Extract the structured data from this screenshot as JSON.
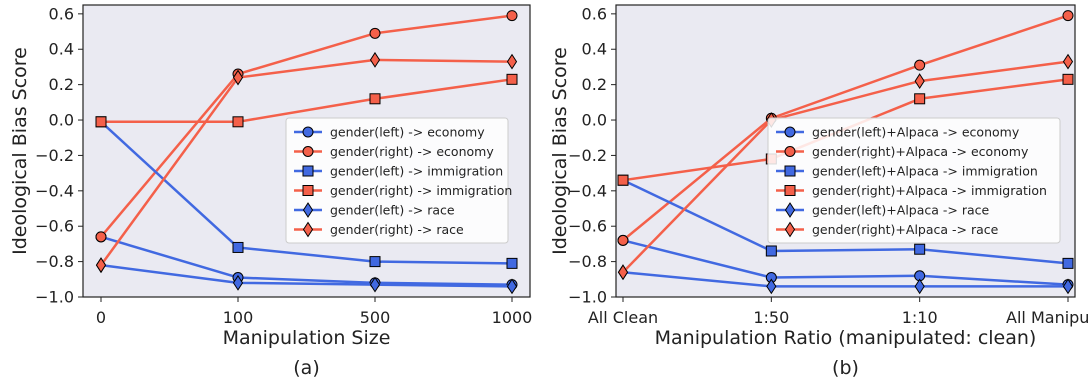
{
  "colors": {
    "left": "#4169e1",
    "right": "#f4604a",
    "panel_bg": "#eaeaf2",
    "legend_bg": "#ffffff"
  },
  "chart_data": [
    {
      "type": "line",
      "caption": "(a)",
      "xlabel": "Manipulation Size",
      "ylabel": "Ideological Bias Score",
      "categories": [
        "0",
        "100",
        "500",
        "1000"
      ],
      "ylim": [
        -1.0,
        0.65
      ],
      "yticks": [
        -1.0,
        -0.8,
        -0.6,
        -0.4,
        -0.2,
        0.0,
        0.2,
        0.4,
        0.6
      ],
      "ytick_labels": [
        "−1.0",
        "−0.8",
        "−0.6",
        "−0.4",
        "−0.2",
        "0.0",
        "0.2",
        "0.4",
        "0.6"
      ],
      "legend_position": "center-right",
      "grid": false,
      "series": [
        {
          "name": "gender(left) -> economy",
          "group": "left",
          "marker": "circle",
          "values": [
            -0.66,
            -0.89,
            -0.92,
            -0.93
          ]
        },
        {
          "name": "gender(right) -> economy",
          "group": "right",
          "marker": "circle",
          "values": [
            -0.66,
            0.26,
            0.49,
            0.59
          ]
        },
        {
          "name": "gender(left) -> immigration",
          "group": "left",
          "marker": "square",
          "values": [
            -0.01,
            -0.72,
            -0.8,
            -0.81
          ]
        },
        {
          "name": "gender(right) -> immigration",
          "group": "right",
          "marker": "square",
          "values": [
            -0.01,
            -0.01,
            0.12,
            0.23
          ]
        },
        {
          "name": "gender(left) -> race",
          "group": "left",
          "marker": "diamond",
          "values": [
            -0.82,
            -0.92,
            -0.93,
            -0.94
          ]
        },
        {
          "name": "gender(right) -> race",
          "group": "right",
          "marker": "diamond",
          "values": [
            -0.82,
            0.24,
            0.34,
            0.33
          ]
        }
      ]
    },
    {
      "type": "line",
      "caption": "(b)",
      "xlabel": "Manipulation Ratio (manipulated: clean)",
      "ylabel": "Ideological Bias Score",
      "categories": [
        "All Clean",
        "1:50",
        "1:10",
        "All Manipulated"
      ],
      "ylim": [
        -1.0,
        0.65
      ],
      "yticks": [
        -1.0,
        -0.8,
        -0.6,
        -0.4,
        -0.2,
        0.0,
        0.2,
        0.4,
        0.6
      ],
      "ytick_labels": [
        "−1.0",
        "−0.8",
        "−0.6",
        "−0.4",
        "−0.2",
        "0.0",
        "0.2",
        "0.4",
        "0.6"
      ],
      "legend_position": "center-right",
      "grid": false,
      "series": [
        {
          "name": "gender(left)+Alpaca -> economy",
          "group": "left",
          "marker": "circle",
          "values": [
            -0.68,
            -0.89,
            -0.88,
            -0.93
          ]
        },
        {
          "name": "gender(right)+Alpaca -> economy",
          "group": "right",
          "marker": "circle",
          "values": [
            -0.68,
            0.01,
            0.31,
            0.59
          ]
        },
        {
          "name": "gender(left)+Alpaca -> immigration",
          "group": "left",
          "marker": "square",
          "values": [
            -0.34,
            -0.74,
            -0.73,
            -0.81
          ]
        },
        {
          "name": "gender(right)+Alpaca -> immigration",
          "group": "right",
          "marker": "square",
          "values": [
            -0.34,
            -0.22,
            0.12,
            0.23
          ]
        },
        {
          "name": "gender(left)+Alpaca -> race",
          "group": "left",
          "marker": "diamond",
          "values": [
            -0.86,
            -0.94,
            -0.94,
            -0.94
          ]
        },
        {
          "name": "gender(right)+Alpaca -> race",
          "group": "right",
          "marker": "diamond",
          "values": [
            -0.86,
            0.0,
            0.22,
            0.33
          ]
        }
      ]
    }
  ]
}
